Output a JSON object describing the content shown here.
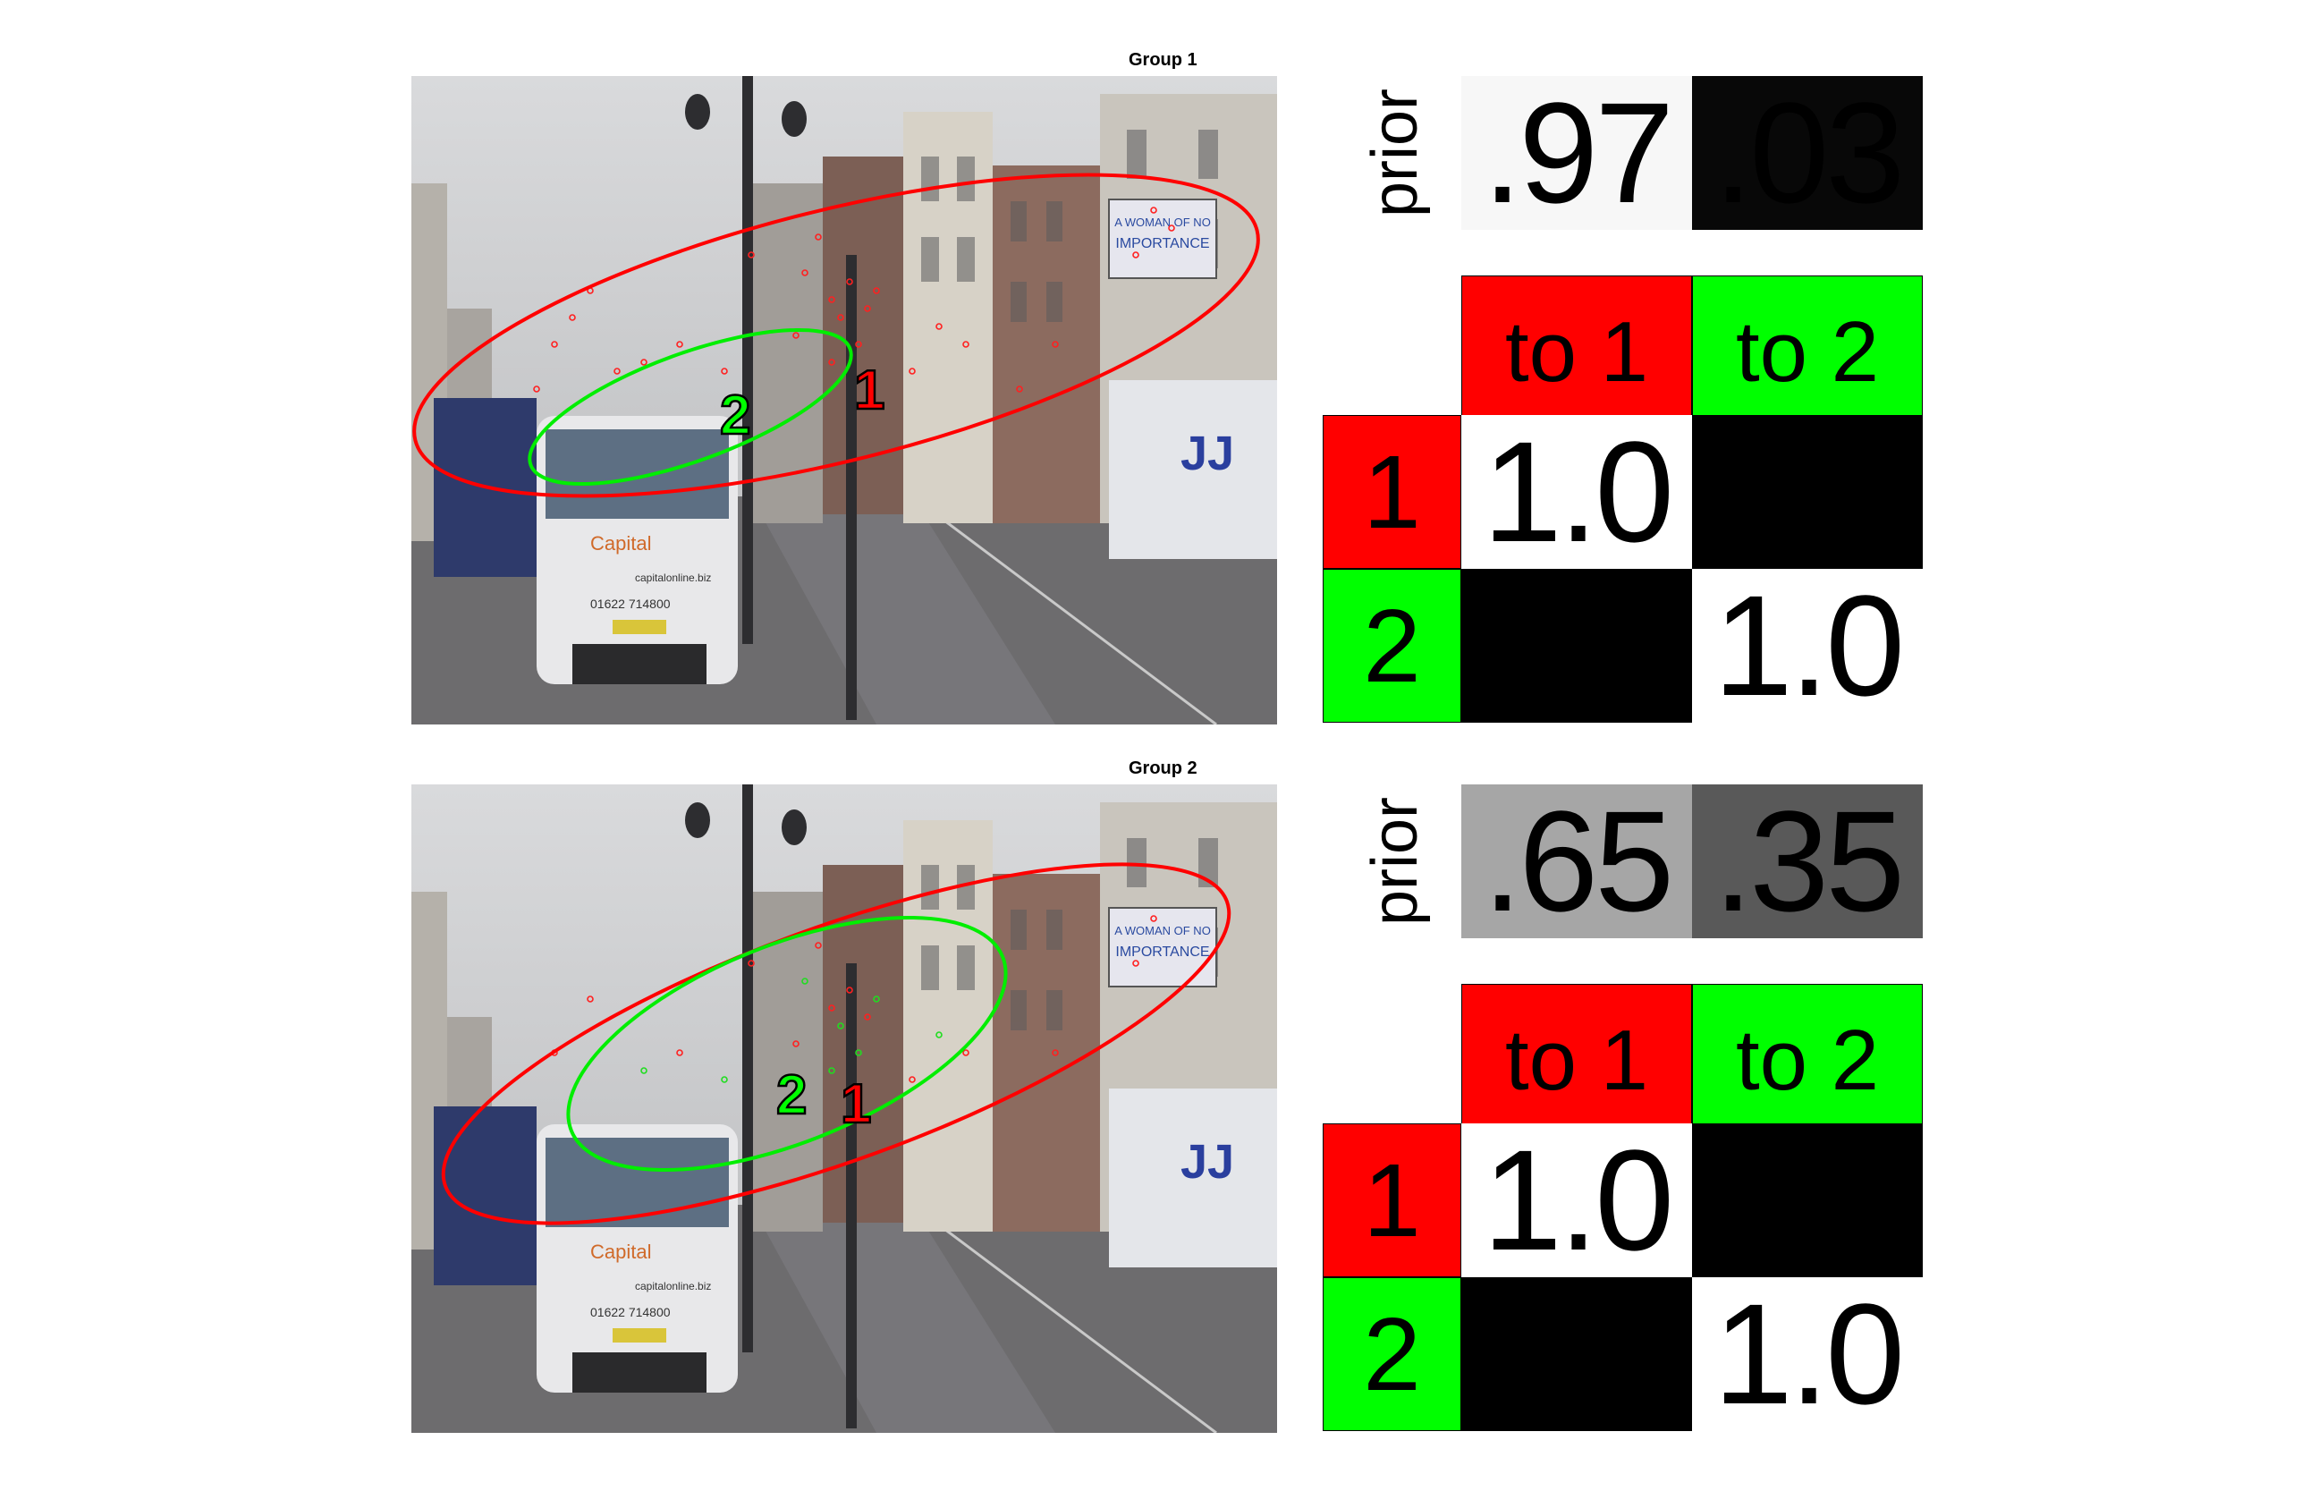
{
  "colors": {
    "group1": "#ff0000",
    "group2": "#00ff00",
    "white": "#ffffff",
    "black": "#000000"
  },
  "panels": [
    {
      "title": "Group 1",
      "prior_label": "prior",
      "prior": [
        {
          "text": ".97",
          "value": 0.97
        },
        {
          "text": ".03",
          "value": 0.03
        }
      ],
      "matrix": {
        "col_headers": [
          "to 1",
          "to 2"
        ],
        "row_headers": [
          "1",
          "2"
        ],
        "cells": [
          [
            {
              "text": "1.0",
              "value": 1.0
            },
            {
              "text": "",
              "value": 0.0
            }
          ],
          [
            {
              "text": "",
              "value": 0.0
            },
            {
              "text": "1.0",
              "value": 1.0
            }
          ]
        ]
      },
      "markers": [
        "1",
        "2"
      ]
    },
    {
      "title": "Group 2",
      "prior_label": "prior",
      "prior": [
        {
          "text": ".65",
          "value": 0.65
        },
        {
          "text": ".35",
          "value": 0.35
        }
      ],
      "matrix": {
        "col_headers": [
          "to 1",
          "to 2"
        ],
        "row_headers": [
          "1",
          "2"
        ],
        "cells": [
          [
            {
              "text": "1.0",
              "value": 1.0
            },
            {
              "text": "",
              "value": 0.0
            }
          ],
          [
            {
              "text": "",
              "value": 0.0
            },
            {
              "text": "1.0",
              "value": 1.0
            }
          ]
        ]
      },
      "markers": [
        "1",
        "2"
      ]
    }
  ],
  "scene_labels": {
    "van_brand": "Capital",
    "van_phone": "01622 714800",
    "van_web": "capitalonline.biz",
    "billboard_line1": "A WOMAN OF NO",
    "billboard_line2": "IMPORTANCE",
    "truck_logo": "JJ"
  }
}
